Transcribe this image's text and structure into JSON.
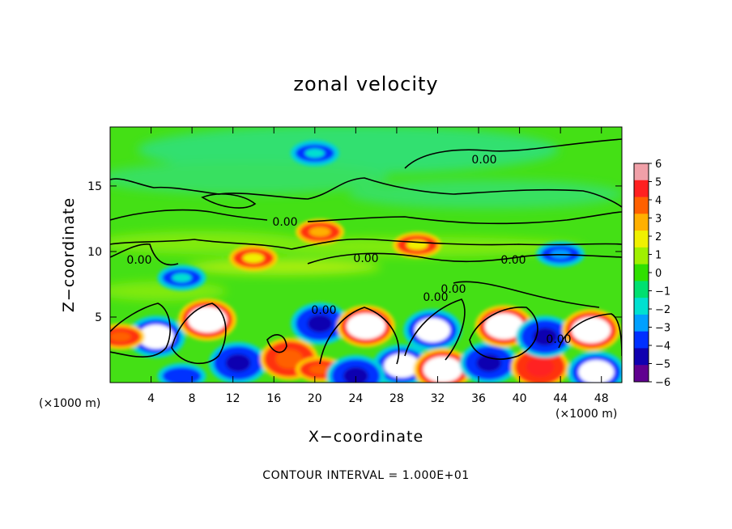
{
  "chart_data": {
    "type": "heatmap",
    "title": "zonal velocity",
    "xlabel": "X−coordinate",
    "ylabel": "Z−coordinate",
    "x_unit": "(×1000 m)",
    "z_unit": "(×1000 m)",
    "xlim": [
      0,
      50
    ],
    "ylim": [
      0,
      19.5
    ],
    "x_ticks": [
      4,
      8,
      12,
      16,
      20,
      24,
      28,
      32,
      36,
      40,
      44,
      48
    ],
    "y_ticks": [
      5,
      10,
      15
    ],
    "colorbar": {
      "range": [
        -6,
        6
      ],
      "ticks": [
        "6",
        "5",
        "4",
        "3",
        "2",
        "1",
        "0",
        "−1",
        "−2",
        "−3",
        "−4",
        "−5",
        "−6"
      ],
      "colors": [
        "#f0a0a8",
        "#ff2020",
        "#ff6000",
        "#ffb000",
        "#f0f000",
        "#a0f000",
        "#30e000",
        "#00e070",
        "#00e0d0",
        "#00a0ff",
        "#0030ff",
        "#1000b0",
        "#600090"
      ]
    },
    "contour_labels": [
      "0.00",
      "0.00",
      "0.00",
      "0.00",
      "0.00",
      "0.00",
      "0.00",
      "0.00",
      "0.00"
    ],
    "footer": "CONTOUR INTERVAL = 1.000E+01",
    "features": [
      {
        "x": 4.5,
        "z": 3.5,
        "value": -5.5
      },
      {
        "x": 9.5,
        "z": 4.8,
        "value": 7
      },
      {
        "x": 12.5,
        "z": 1.5,
        "value": -5
      },
      {
        "x": 17.5,
        "z": 1.8,
        "value": 4.5
      },
      {
        "x": 20.5,
        "z": 4.5,
        "value": -4.5
      },
      {
        "x": 20.5,
        "z": 1.0,
        "value": 4
      },
      {
        "x": 25,
        "z": 4.3,
        "value": 7
      },
      {
        "x": 28.5,
        "z": 1.3,
        "value": -5.5
      },
      {
        "x": 31.5,
        "z": 4.0,
        "value": -6
      },
      {
        "x": 32.5,
        "z": 1.0,
        "value": 7
      },
      {
        "x": 37,
        "z": 1.5,
        "value": -5
      },
      {
        "x": 38.5,
        "z": 4.3,
        "value": 7
      },
      {
        "x": 42,
        "z": 1.2,
        "value": 5
      },
      {
        "x": 42.5,
        "z": 3.5,
        "value": -4.5
      },
      {
        "x": 47,
        "z": 4.0,
        "value": 7
      },
      {
        "x": 47.5,
        "z": 0.8,
        "value": -5.5
      },
      {
        "x": 7,
        "z": 0.5,
        "value": -4
      },
      {
        "x": 24,
        "z": 0.5,
        "value": -5
      },
      {
        "x": 1,
        "z": 3.5,
        "value": 4
      },
      {
        "x": 20.5,
        "z": 11.5,
        "value": 3
      },
      {
        "x": 14,
        "z": 9.5,
        "value": 2.5
      },
      {
        "x": 30,
        "z": 10.5,
        "value": 2
      },
      {
        "x": 44,
        "z": 9.8,
        "value": -2.5
      },
      {
        "x": 20,
        "z": 17.5,
        "value": -1.5
      },
      {
        "x": 7,
        "z": 8.0,
        "value": -2
      }
    ]
  }
}
